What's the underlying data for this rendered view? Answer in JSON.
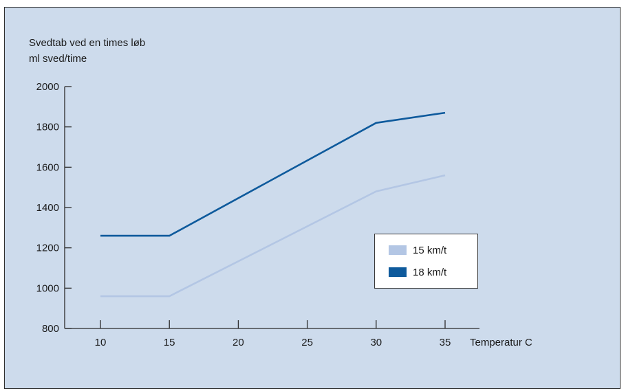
{
  "chart_data": {
    "type": "line",
    "ylabel_line1": "Svedtab ved en times løb",
    "ylabel_line2": "ml sved/time",
    "xlabel": "Temperatur C",
    "x": [
      10,
      15,
      20,
      25,
      30,
      35
    ],
    "xlim": [
      10,
      35
    ],
    "ylim": [
      800,
      2000
    ],
    "x_ticks": [
      10,
      15,
      20,
      25,
      30,
      35
    ],
    "y_ticks": [
      800,
      1000,
      1200,
      1400,
      1600,
      1800,
      2000
    ],
    "grid": false,
    "legend_placement": "right-center",
    "series": [
      {
        "name": "15 km/t",
        "color": "#b3c6e4",
        "x": [
          10,
          15,
          30,
          35
        ],
        "values": [
          960,
          960,
          1480,
          1560
        ]
      },
      {
        "name": "18 km/t",
        "color": "#0e5a9c",
        "x": [
          10,
          15,
          30,
          35
        ],
        "values": [
          1260,
          1260,
          1820,
          1870
        ]
      }
    ]
  }
}
